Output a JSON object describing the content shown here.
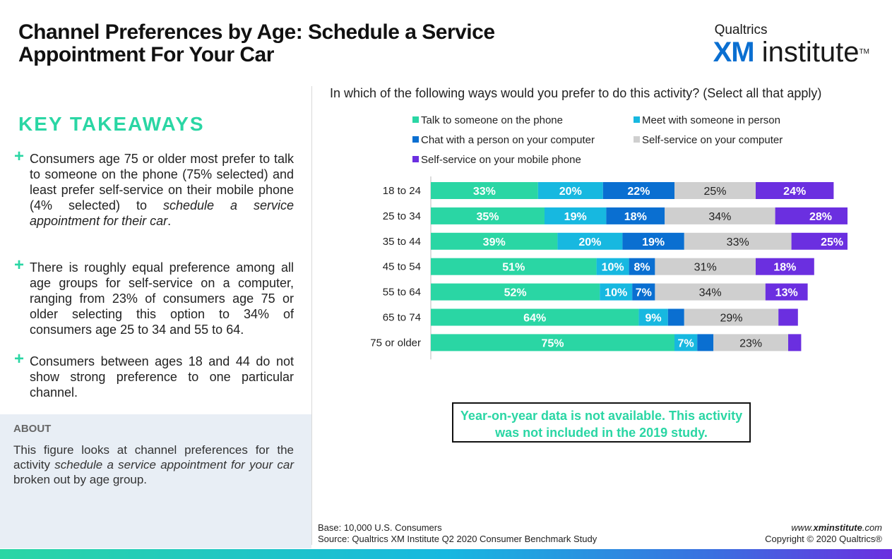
{
  "title": "Channel Preferences by Age: Schedule a Service Appointment For Your Car",
  "logo": {
    "top": "Qualtrics",
    "xm": "XM",
    "institute": "institute",
    "tm": "TM"
  },
  "key_takeaways": {
    "heading": "KEY TAKEAWAYS",
    "items": [
      {
        "pre": "Consumers age 75 or older most prefer to talk to someone on the phone (75% selected) and least prefer self-service on their mobile phone (4% selected) to ",
        "em": "schedule a service appointment for their car",
        "post": "."
      },
      {
        "pre": "There is roughly equal preference among all age groups for self-service on a computer, ranging from 23% of consumers age 75 or older selecting this option to 34% of consumers age 25 to 34 and 55 to 64.",
        "em": "",
        "post": ""
      },
      {
        "pre": "Consumers between ages 18 and 44 do not show strong preference to one particular channel.",
        "em": "",
        "post": ""
      }
    ]
  },
  "about": {
    "heading": "ABOUT",
    "pre": "This figure looks at channel preferences for the activity ",
    "em": "schedule a service appointment for your car",
    "post": " broken out by age group."
  },
  "note": "Year-on-year data is not available. This activity was not included in the 2019 study.",
  "footer": {
    "base": "Base: 10,000 U.S. Consumers",
    "source": "Source: Qualtrics XM Institute Q2 2020 Consumer Benchmark Study",
    "site_pre": "www.",
    "site_bold": "xminstitute",
    "site_post": ".com",
    "copyright": "Copyright © 2020 Qualtrics®"
  },
  "chart_data": {
    "type": "bar",
    "orientation": "horizontal-stacked",
    "title": "In which of the following ways would you prefer to do this activity? (Select all that apply)",
    "categories": [
      "18 to 24",
      "25 to 34",
      "35 to 44",
      "45 to 54",
      "55 to 64",
      "65 to 74",
      "75 or older"
    ],
    "series": [
      {
        "name": "Talk to someone on the phone",
        "color": "#2ad6a4",
        "values": [
          33,
          35,
          39,
          51,
          52,
          64,
          75
        ]
      },
      {
        "name": "Meet with someone in person",
        "color": "#17b8e0",
        "values": [
          20,
          19,
          20,
          10,
          10,
          9,
          7
        ]
      },
      {
        "name": "Chat with a person on your computer",
        "color": "#0a6fd1",
        "values": [
          22,
          18,
          19,
          8,
          7,
          5,
          5
        ]
      },
      {
        "name": "Self-service on your computer",
        "color": "#cfcfcf",
        "values": [
          25,
          34,
          33,
          31,
          34,
          29,
          23
        ]
      },
      {
        "name": "Self-service on your mobile phone",
        "color": "#6b2fe0",
        "values": [
          24,
          28,
          25,
          18,
          13,
          6,
          4
        ]
      }
    ],
    "labels_shown": [
      [
        true,
        true,
        true,
        true,
        true
      ],
      [
        true,
        true,
        true,
        true,
        true
      ],
      [
        true,
        true,
        true,
        true,
        true
      ],
      [
        true,
        true,
        true,
        true,
        true
      ],
      [
        true,
        true,
        true,
        true,
        true
      ],
      [
        true,
        true,
        false,
        true,
        false
      ],
      [
        true,
        true,
        false,
        true,
        false
      ]
    ],
    "value_suffix": "%",
    "legend_position": "top",
    "grid": false
  }
}
